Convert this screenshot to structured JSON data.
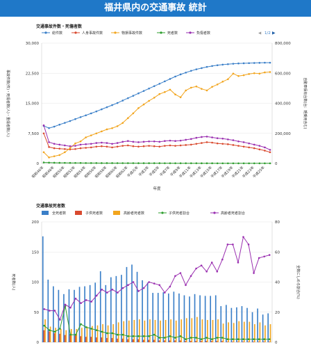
{
  "page": {
    "title": "福井県内の交通事故 統計"
  },
  "colors": {
    "banner": "#1f78c8"
  },
  "chart_data": [
    {
      "type": "line",
      "title": "交通事故件数・死傷者数",
      "xlabel": "年度",
      "ylabel_left": "事故件数(件)・死傷者数(人)・重傷者数(人)",
      "ylabel_right": "自動車保有台数(台：軽乗用含む)",
      "legend_position": "top",
      "legend_page": "1/2",
      "grid": true,
      "ylim_left": [
        0,
        30000
      ],
      "ylim_right": [
        0,
        800000
      ],
      "yticks_left": [
        "0",
        "7,500",
        "15,000",
        "22,500",
        "30,000"
      ],
      "yticks_right": [
        "0",
        "200,000",
        "400,000",
        "600,000",
        "800,000"
      ],
      "xticks": [
        "昭和46年",
        "昭和48年",
        "昭和50年",
        "昭和52年",
        "昭和54年",
        "昭和56年",
        "昭和58年",
        "昭和60年",
        "昭和62年",
        "平成元年",
        "平成3年",
        "平成5年",
        "平成7年",
        "平成9年",
        "平成11年",
        "平成13年",
        "平成15年",
        "平成17年",
        "平成19年",
        "平成21年",
        "平成23年",
        "平成25年"
      ],
      "n_points": 44,
      "series": [
        {
          "name": "総件数",
          "color": "#3a7fc8",
          "axis": "right",
          "values": [
            250000,
            235000,
            245000,
            258000,
            270000,
            282000,
            295000,
            308000,
            320000,
            333000,
            346000,
            360000,
            374000,
            388000,
            402000,
            418000,
            434000,
            450000,
            466000,
            482000,
            498000,
            514000,
            530000,
            546000,
            562000,
            578000,
            592000,
            604000,
            616000,
            626000,
            634000,
            642000,
            648000,
            653000,
            657000,
            660000,
            663000,
            665000,
            666000,
            667000,
            668000,
            669000,
            670000,
            670000
          ]
        },
        {
          "name": "人身事故件数",
          "color": "#d94a2f",
          "axis": "left",
          "values": [
            7500,
            4100,
            3800,
            3700,
            3600,
            3500,
            3600,
            3800,
            3900,
            4000,
            4200,
            4300,
            4200,
            4000,
            4200,
            4400,
            4500,
            4300,
            4200,
            4300,
            4400,
            4300,
            4200,
            4400,
            4500,
            4400,
            4500,
            4600,
            4700,
            4900,
            5100,
            5300,
            5200,
            5000,
            4900,
            4800,
            4600,
            4400,
            4200,
            4000,
            3800,
            3500,
            3200,
            2800
          ]
        },
        {
          "name": "物損事故件数",
          "color": "#f2a51e",
          "axis": "left",
          "values": [
            2800,
            1500,
            1800,
            2100,
            2800,
            3800,
            5000,
            5500,
            6500,
            7000,
            7500,
            8000,
            8500,
            8800,
            9300,
            10100,
            11300,
            12500,
            13800,
            14700,
            15600,
            16400,
            17300,
            17800,
            18400,
            17200,
            16500,
            18200,
            18900,
            19200,
            18600,
            18200,
            19100,
            19700,
            20400,
            21000,
            22400,
            21800,
            22000,
            22300,
            22500,
            22400,
            22700,
            22800
          ]
        },
        {
          "name": "死者数",
          "color": "#2e9e2e",
          "axis": "left",
          "values": [
            250,
            200,
            180,
            160,
            150,
            140,
            130,
            120,
            110,
            100,
            100,
            95,
            90,
            90,
            85,
            85,
            80,
            80,
            75,
            75,
            70,
            70,
            70,
            65,
            65,
            60,
            60,
            55,
            55,
            55,
            50,
            50,
            50,
            45,
            45,
            45,
            40,
            40,
            40,
            40,
            35,
            35,
            35,
            35
          ]
        },
        {
          "name": "負傷者数",
          "color": "#9a2fb0",
          "axis": "left",
          "values": [
            9500,
            5300,
            4900,
            4700,
            4500,
            4300,
            4400,
            4700,
            4800,
            4900,
            5100,
            5200,
            5100,
            4900,
            5100,
            5400,
            5600,
            5400,
            5300,
            5400,
            5500,
            5500,
            5400,
            5600,
            5700,
            5600,
            5700,
            5900,
            6100,
            6400,
            6600,
            6700,
            6500,
            6300,
            6200,
            6000,
            5800,
            5500,
            5300,
            5000,
            4700,
            4400,
            4000,
            3400
          ]
        }
      ]
    },
    {
      "type": "bar",
      "title": "交通事故死者数",
      "ylabel_left": "死者数(人)",
      "ylabel_right": "全数にしめる割合(%)",
      "legend_position": "top",
      "grid": true,
      "ylim_left": [
        0,
        200
      ],
      "ylim_right": [
        0,
        80
      ],
      "yticks_left": [
        "0",
        "50",
        "100",
        "150",
        "200"
      ],
      "yticks_right": [
        "0",
        "20",
        "40",
        "60",
        "80"
      ],
      "n_points": 44,
      "series": [
        {
          "name": "全死者数",
          "color": "#3a7fc8",
          "kind": "bar",
          "axis": "left",
          "values": [
            176,
            104,
            93,
            87,
            80,
            88,
            87,
            92,
            93,
            95,
            99,
            118,
            95,
            108,
            110,
            112,
            125,
            129,
            117,
            103,
            99,
            82,
            82,
            83,
            81,
            84,
            81,
            78,
            76,
            80,
            78,
            77,
            77,
            78,
            60,
            62,
            57,
            58,
            60,
            57,
            50,
            56,
            46,
            48
          ]
        },
        {
          "name": "子供死者数",
          "color": "#d94a2f",
          "kind": "bar",
          "axis": "left",
          "values": [
            20,
            18,
            15,
            14,
            12,
            12,
            11,
            10,
            9,
            9,
            8,
            8,
            7,
            7,
            6,
            6,
            5,
            5,
            5,
            4,
            4,
            4,
            3,
            3,
            3,
            3,
            3,
            2,
            2,
            2,
            2,
            2,
            2,
            2,
            2,
            1,
            1,
            1,
            1,
            1,
            1,
            1,
            1,
            1
          ]
        },
        {
          "name": "高齢者死者数",
          "color": "#f2a51e",
          "kind": "bar",
          "axis": "left",
          "values": [
            38,
            26,
            24,
            22,
            20,
            22,
            22,
            24,
            26,
            27,
            28,
            30,
            28,
            30,
            33,
            35,
            36,
            37,
            38,
            36,
            38,
            37,
            36,
            37,
            38,
            36,
            38,
            40,
            40,
            42,
            38,
            37,
            37,
            38,
            31,
            33,
            32,
            35,
            34,
            34,
            30,
            33,
            28,
            30
          ]
        },
        {
          "name": "子供死者割合",
          "color": "#2e9e2e",
          "kind": "line",
          "axis": "right",
          "values": [
            11,
            8,
            7,
            9,
            24,
            5,
            5,
            12,
            10,
            9,
            8,
            7,
            6,
            6,
            5,
            5,
            4,
            4,
            4,
            4,
            4,
            5,
            3,
            3,
            4,
            3,
            4,
            2,
            3,
            3,
            2,
            3,
            2,
            3,
            3,
            2,
            2,
            2,
            2,
            2,
            2,
            2,
            2,
            2
          ]
        },
        {
          "name": "高齢者死者割合",
          "color": "#9a2fb0",
          "kind": "line",
          "axis": "right",
          "values": [
            22,
            21,
            21,
            15,
            25,
            23,
            29,
            26,
            28,
            27,
            31,
            35,
            33,
            35,
            33,
            36,
            38,
            40,
            34,
            36,
            40,
            39,
            38,
            33,
            37,
            44,
            46,
            38,
            44,
            49,
            51,
            47,
            53,
            47,
            55,
            65,
            65,
            53,
            70,
            65,
            46,
            56,
            57,
            58
          ]
        }
      ]
    }
  ]
}
